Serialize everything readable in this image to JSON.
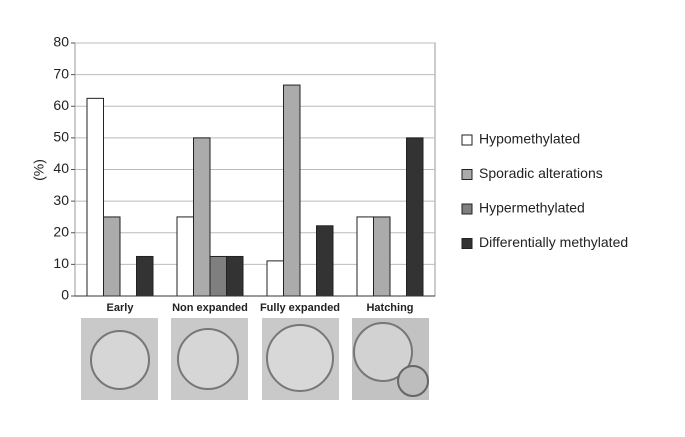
{
  "chart_data": {
    "type": "bar",
    "y_label": "(%)",
    "categories": [
      "Early",
      "Non expanded",
      "Fully expanded",
      "Hatching"
    ],
    "series": [
      {
        "name": "Hypomethylated",
        "color": "#ffffff",
        "values": [
          62.5,
          25,
          11.1,
          25
        ]
      },
      {
        "name": "Sporadic alterations",
        "color": "#ababab",
        "values": [
          25,
          50,
          66.7,
          25
        ]
      },
      {
        "name": "Hypermethylated",
        "color": "#7f7f7f",
        "values": [
          0,
          12.5,
          0,
          0
        ]
      },
      {
        "name": "Differentially methylated",
        "color": "#333333",
        "values": [
          12.5,
          12.5,
          22.2,
          50
        ]
      }
    ],
    "ylim": [
      0,
      80
    ],
    "yticks": [
      0,
      10,
      20,
      30,
      40,
      50,
      60,
      70,
      80
    ],
    "grid": true
  }
}
